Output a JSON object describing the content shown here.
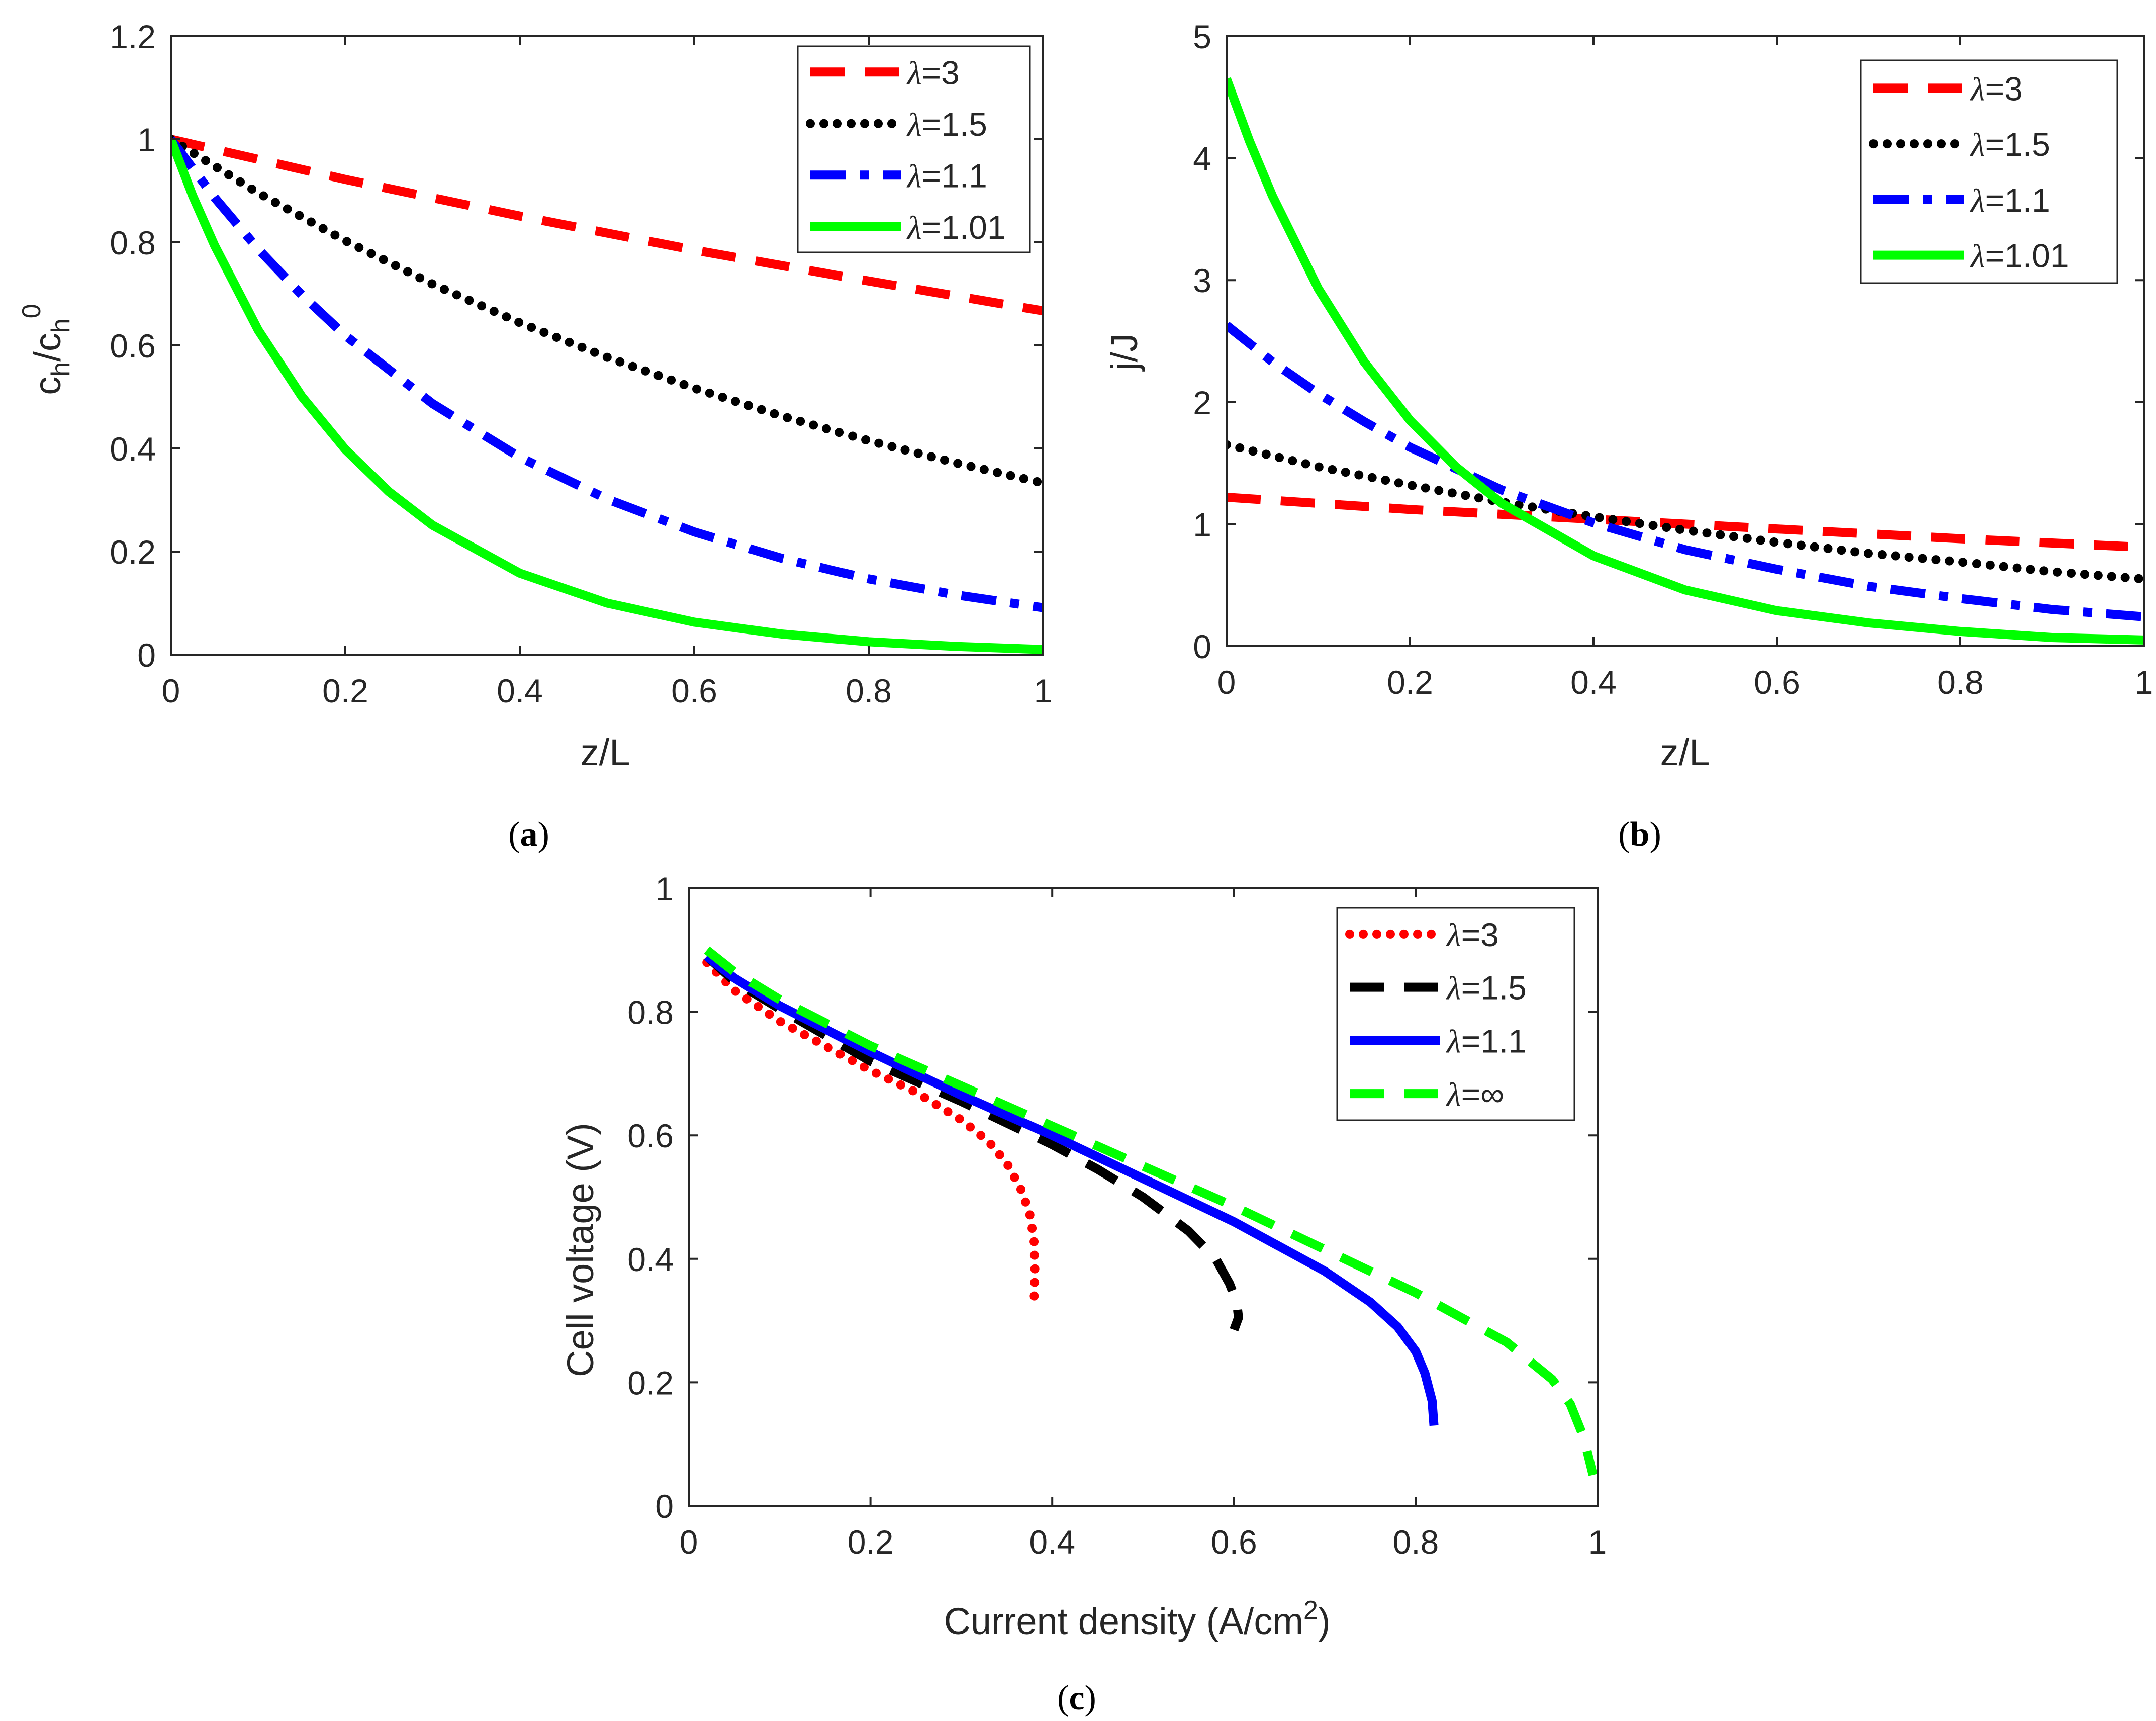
{
  "captions": {
    "a": "a",
    "b": "b",
    "c": "c"
  },
  "colors": {
    "red": "#ff0000",
    "black": "#000000",
    "blue": "#0000ff",
    "green": "#00ff00",
    "axis": "#262626"
  },
  "chart_data": [
    {
      "id": "a",
      "type": "line",
      "xlabel": "z/L",
      "ylabel": {
        "base": "c",
        "sub1": "h",
        "slash": "/c",
        "sub2": "h",
        "sup": "0"
      },
      "xlim": [
        0,
        1
      ],
      "ylim": [
        0,
        1.2
      ],
      "xticks": [
        0,
        0.2,
        0.4,
        0.6,
        0.8,
        1
      ],
      "xtick_labels": [
        "0",
        "0.2",
        "0.4",
        "0.6",
        "0.8",
        "1"
      ],
      "yticks": [
        0,
        0.2,
        0.4,
        0.6,
        0.8,
        1,
        1.2
      ],
      "ytick_labels": [
        "0",
        "0.2",
        "0.4",
        "0.6",
        "0.8",
        "1",
        "1.2"
      ],
      "legend_position": "top-right",
      "series": [
        {
          "name": "λ=3",
          "lambda": "λ",
          "value": "=3",
          "color": "#ff0000",
          "style": "dashed",
          "x": [
            0,
            0.2,
            0.4,
            0.6,
            0.8,
            1
          ],
          "y": [
            1,
            0.922,
            0.851,
            0.785,
            0.725,
            0.667
          ]
        },
        {
          "name": "λ=1.5",
          "lambda": "λ",
          "value": "=1.5",
          "color": "#000000",
          "style": "dotted",
          "x": [
            0,
            0.1,
            0.2,
            0.3,
            0.4,
            0.5,
            0.6,
            0.7,
            0.8,
            0.9,
            1
          ],
          "y": [
            1,
            0.896,
            0.803,
            0.719,
            0.644,
            0.577,
            0.517,
            0.463,
            0.415,
            0.372,
            0.333
          ]
        },
        {
          "name": "λ=1.1",
          "lambda": "λ",
          "value": "=1.1",
          "color": "#0000ff",
          "style": "dashdot",
          "x": [
            0,
            0.05,
            0.1,
            0.15,
            0.2,
            0.3,
            0.4,
            0.5,
            0.6,
            0.7,
            0.8,
            0.9,
            1
          ],
          "y": [
            1,
            0.887,
            0.787,
            0.698,
            0.619,
            0.487,
            0.383,
            0.302,
            0.238,
            0.187,
            0.147,
            0.116,
            0.091
          ]
        },
        {
          "name": "λ=1.01",
          "lambda": "λ",
          "value": "=1.01",
          "color": "#00ff00",
          "style": "solid",
          "x": [
            0,
            0.025,
            0.05,
            0.1,
            0.15,
            0.2,
            0.25,
            0.3,
            0.4,
            0.5,
            0.6,
            0.7,
            0.8,
            0.9,
            1
          ],
          "y": [
            1,
            0.89,
            0.794,
            0.63,
            0.501,
            0.398,
            0.316,
            0.251,
            0.158,
            0.1,
            0.063,
            0.04,
            0.025,
            0.016,
            0.01
          ]
        }
      ]
    },
    {
      "id": "b",
      "type": "line",
      "xlabel": "z/L",
      "ylabel": "j/J",
      "xlim": [
        0,
        1
      ],
      "ylim": [
        0,
        5
      ],
      "xticks": [
        0,
        0.2,
        0.4,
        0.6,
        0.8,
        1
      ],
      "xtick_labels": [
        "0",
        "0.2",
        "0.4",
        "0.6",
        "0.8",
        "1"
      ],
      "yticks": [
        0,
        1,
        2,
        3,
        4,
        5
      ],
      "ytick_labels": [
        "0",
        "1",
        "2",
        "3",
        "4",
        "5"
      ],
      "legend_position": "top-right",
      "series": [
        {
          "name": "λ=3",
          "lambda": "λ",
          "value": "=3",
          "color": "#ff0000",
          "style": "dashed",
          "x": [
            0,
            0.2,
            0.4,
            0.6,
            0.8,
            1
          ],
          "y": [
            1.22,
            1.12,
            1.04,
            0.96,
            0.88,
            0.81
          ]
        },
        {
          "name": "λ=1.5",
          "lambda": "λ",
          "value": "=1.5",
          "color": "#000000",
          "style": "dotted",
          "x": [
            0,
            0.1,
            0.2,
            0.3,
            0.4,
            0.5,
            0.6,
            0.7,
            0.8,
            0.9,
            1
          ],
          "y": [
            1.65,
            1.47,
            1.32,
            1.18,
            1.06,
            0.95,
            0.85,
            0.76,
            0.69,
            0.61,
            0.55
          ]
        },
        {
          "name": "λ=1.1",
          "lambda": "λ",
          "value": "=1.1",
          "color": "#0000ff",
          "style": "dashdot",
          "x": [
            0,
            0.05,
            0.1,
            0.15,
            0.2,
            0.3,
            0.4,
            0.5,
            0.6,
            0.7,
            0.8,
            0.9,
            1
          ],
          "y": [
            2.63,
            2.33,
            2.07,
            1.84,
            1.63,
            1.28,
            1.01,
            0.79,
            0.63,
            0.49,
            0.39,
            0.3,
            0.24
          ]
        },
        {
          "name": "λ=1.01",
          "lambda": "λ",
          "value": "=1.01",
          "color": "#00ff00",
          "style": "solid",
          "x": [
            0,
            0.025,
            0.05,
            0.1,
            0.15,
            0.2,
            0.25,
            0.3,
            0.4,
            0.5,
            0.6,
            0.7,
            0.8,
            0.9,
            1
          ],
          "y": [
            4.65,
            4.14,
            3.69,
            2.93,
            2.33,
            1.85,
            1.47,
            1.17,
            0.74,
            0.46,
            0.29,
            0.19,
            0.12,
            0.07,
            0.05
          ]
        }
      ]
    },
    {
      "id": "c",
      "type": "line",
      "xlabel": {
        "text": "Current density (A/cm",
        "sup": "2",
        "close": ")"
      },
      "ylabel": "Cell voltage (V)",
      "xlim": [
        0,
        1
      ],
      "ylim": [
        0,
        1
      ],
      "xticks": [
        0,
        0.2,
        0.4,
        0.6,
        0.8,
        1
      ],
      "xtick_labels": [
        "0",
        "0.2",
        "0.4",
        "0.6",
        "0.8",
        "1"
      ],
      "yticks": [
        0,
        0.2,
        0.4,
        0.6,
        0.8,
        1
      ],
      "ytick_labels": [
        "0",
        "0.2",
        "0.4",
        "0.6",
        "0.8",
        "1"
      ],
      "legend_position": "top-right",
      "series": [
        {
          "name": "λ=3",
          "lambda": "λ",
          "value": "=3",
          "color": "#ff0000",
          "style": "dotted",
          "x": [
            0.02,
            0.05,
            0.1,
            0.15,
            0.2,
            0.25,
            0.3,
            0.33,
            0.35,
            0.365,
            0.375,
            0.38,
            0.381,
            0.38
          ],
          "y": [
            0.88,
            0.835,
            0.785,
            0.745,
            0.705,
            0.67,
            0.625,
            0.59,
            0.555,
            0.515,
            0.475,
            0.43,
            0.38,
            0.33
          ]
        },
        {
          "name": "λ=1.5",
          "lambda": "λ",
          "value": "=1.5",
          "color": "#000000",
          "style": "dashed",
          "x": [
            0.02,
            0.05,
            0.1,
            0.2,
            0.3,
            0.4,
            0.45,
            0.5,
            0.55,
            0.58,
            0.595,
            0.603,
            0.605,
            0.6
          ],
          "y": [
            0.89,
            0.85,
            0.805,
            0.72,
            0.655,
            0.585,
            0.545,
            0.5,
            0.445,
            0.4,
            0.36,
            0.33,
            0.305,
            0.285
          ]
        },
        {
          "name": "λ=1.1",
          "lambda": "λ",
          "value": "=1.1",
          "color": "#0000ff",
          "style": "solid",
          "x": [
            0.02,
            0.05,
            0.1,
            0.2,
            0.3,
            0.4,
            0.5,
            0.6,
            0.7,
            0.75,
            0.78,
            0.8,
            0.81,
            0.818,
            0.82
          ],
          "y": [
            0.89,
            0.855,
            0.81,
            0.735,
            0.665,
            0.6,
            0.53,
            0.46,
            0.38,
            0.33,
            0.29,
            0.25,
            0.215,
            0.17,
            0.13
          ]
        },
        {
          "name": "λ=∞",
          "lambda": "λ",
          "value": "=∞",
          "color": "#00ff00",
          "style": "dashed",
          "x": [
            0.02,
            0.05,
            0.1,
            0.2,
            0.3,
            0.4,
            0.5,
            0.6,
            0.7,
            0.8,
            0.9,
            0.95,
            0.97,
            0.985,
            0.995
          ],
          "y": [
            0.9,
            0.865,
            0.82,
            0.745,
            0.68,
            0.615,
            0.55,
            0.485,
            0.415,
            0.345,
            0.265,
            0.205,
            0.165,
            0.11,
            0.05
          ]
        }
      ]
    }
  ]
}
